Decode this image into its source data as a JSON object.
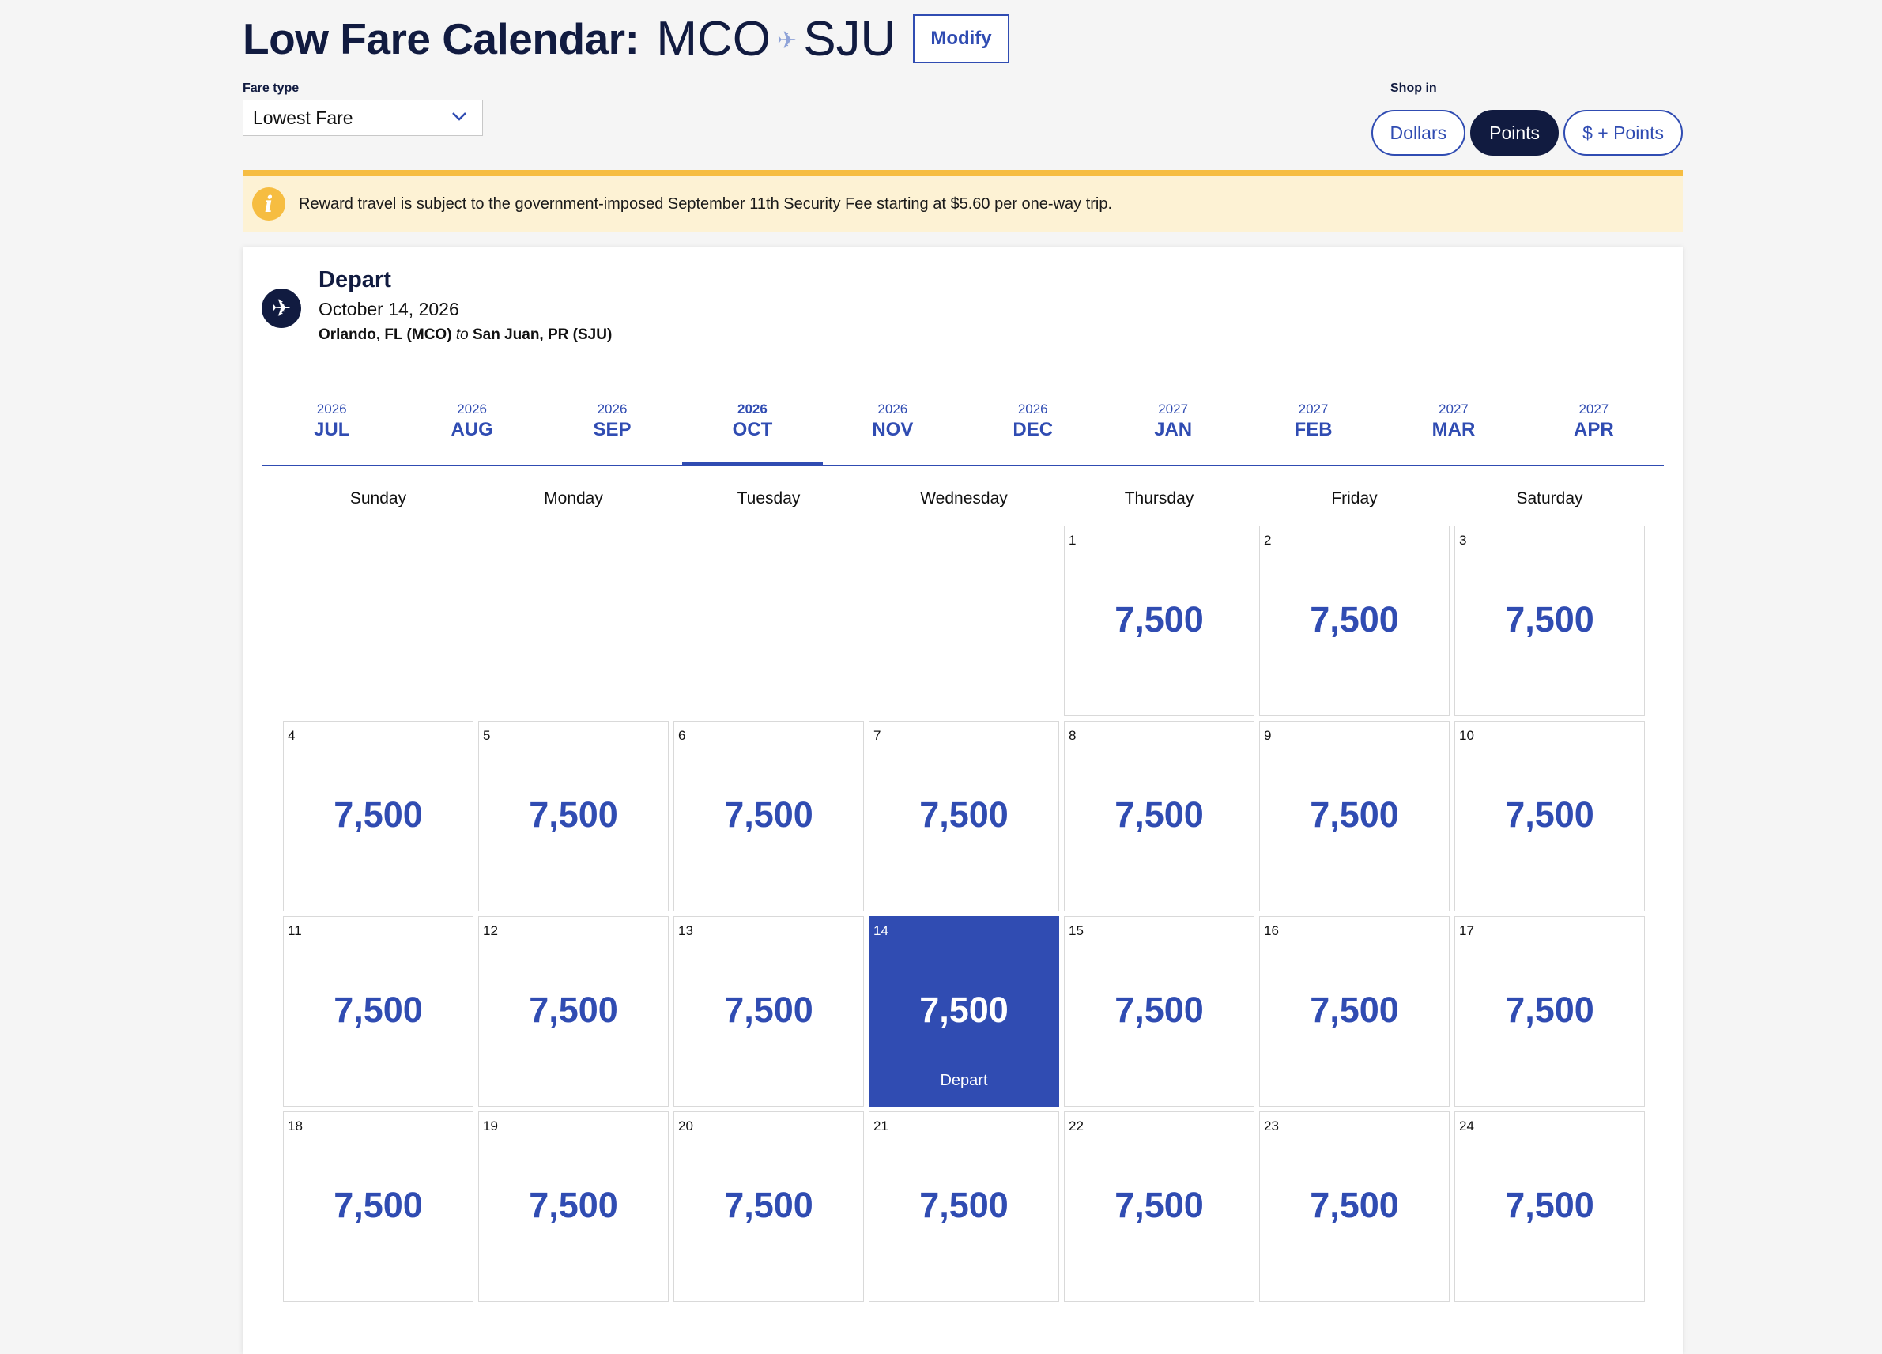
{
  "header": {
    "title": "Low Fare Calendar:",
    "origin_code": "MCO",
    "destination_code": "SJU",
    "modify_label": "Modify"
  },
  "fare_type": {
    "label": "Fare type",
    "selected": "Lowest Fare"
  },
  "shop_in": {
    "label": "Shop in",
    "options": [
      "Dollars",
      "Points",
      "$ + Points"
    ],
    "selected": "Points"
  },
  "notice": {
    "icon": "info-icon",
    "text": "Reward travel is subject to the government-imposed September 11th Security Fee starting at $5.60 per one-way trip."
  },
  "trip": {
    "heading": "Depart",
    "date": "October 14, 2026",
    "from": "Orlando, FL (MCO)",
    "connector": "to",
    "to": "San Juan, PR (SJU)"
  },
  "months": [
    {
      "year": "2026",
      "month": "JUL"
    },
    {
      "year": "2026",
      "month": "AUG"
    },
    {
      "year": "2026",
      "month": "SEP"
    },
    {
      "year": "2026",
      "month": "OCT",
      "active": true
    },
    {
      "year": "2026",
      "month": "NOV"
    },
    {
      "year": "2026",
      "month": "DEC"
    },
    {
      "year": "2027",
      "month": "JAN"
    },
    {
      "year": "2027",
      "month": "FEB"
    },
    {
      "year": "2027",
      "month": "MAR"
    },
    {
      "year": "2027",
      "month": "APR"
    }
  ],
  "weekdays": [
    "Sunday",
    "Monday",
    "Tuesday",
    "Wednesday",
    "Thursday",
    "Friday",
    "Saturday"
  ],
  "calendar": {
    "first_weekday_index": 4,
    "selected_day": 14,
    "selected_label": "Depart",
    "days": [
      {
        "day": "1",
        "price": "7,500"
      },
      {
        "day": "2",
        "price": "7,500"
      },
      {
        "day": "3",
        "price": "7,500"
      },
      {
        "day": "4",
        "price": "7,500"
      },
      {
        "day": "5",
        "price": "7,500"
      },
      {
        "day": "6",
        "price": "7,500"
      },
      {
        "day": "7",
        "price": "7,500"
      },
      {
        "day": "8",
        "price": "7,500"
      },
      {
        "day": "9",
        "price": "7,500"
      },
      {
        "day": "10",
        "price": "7,500"
      },
      {
        "day": "11",
        "price": "7,500"
      },
      {
        "day": "12",
        "price": "7,500"
      },
      {
        "day": "13",
        "price": "7,500"
      },
      {
        "day": "14",
        "price": "7,500"
      },
      {
        "day": "15",
        "price": "7,500"
      },
      {
        "day": "16",
        "price": "7,500"
      },
      {
        "day": "17",
        "price": "7,500"
      },
      {
        "day": "18",
        "price": "7,500"
      },
      {
        "day": "19",
        "price": "7,500"
      },
      {
        "day": "20",
        "price": "7,500"
      },
      {
        "day": "21",
        "price": "7,500"
      },
      {
        "day": "22",
        "price": "7,500"
      },
      {
        "day": "23",
        "price": "7,500"
      },
      {
        "day": "24",
        "price": "7,500"
      }
    ]
  },
  "colors": {
    "brand_navy": "#111b40",
    "brand_blue": "#304cb2",
    "notice_bg": "#fdf2d4",
    "notice_accent": "#f6bd41"
  }
}
